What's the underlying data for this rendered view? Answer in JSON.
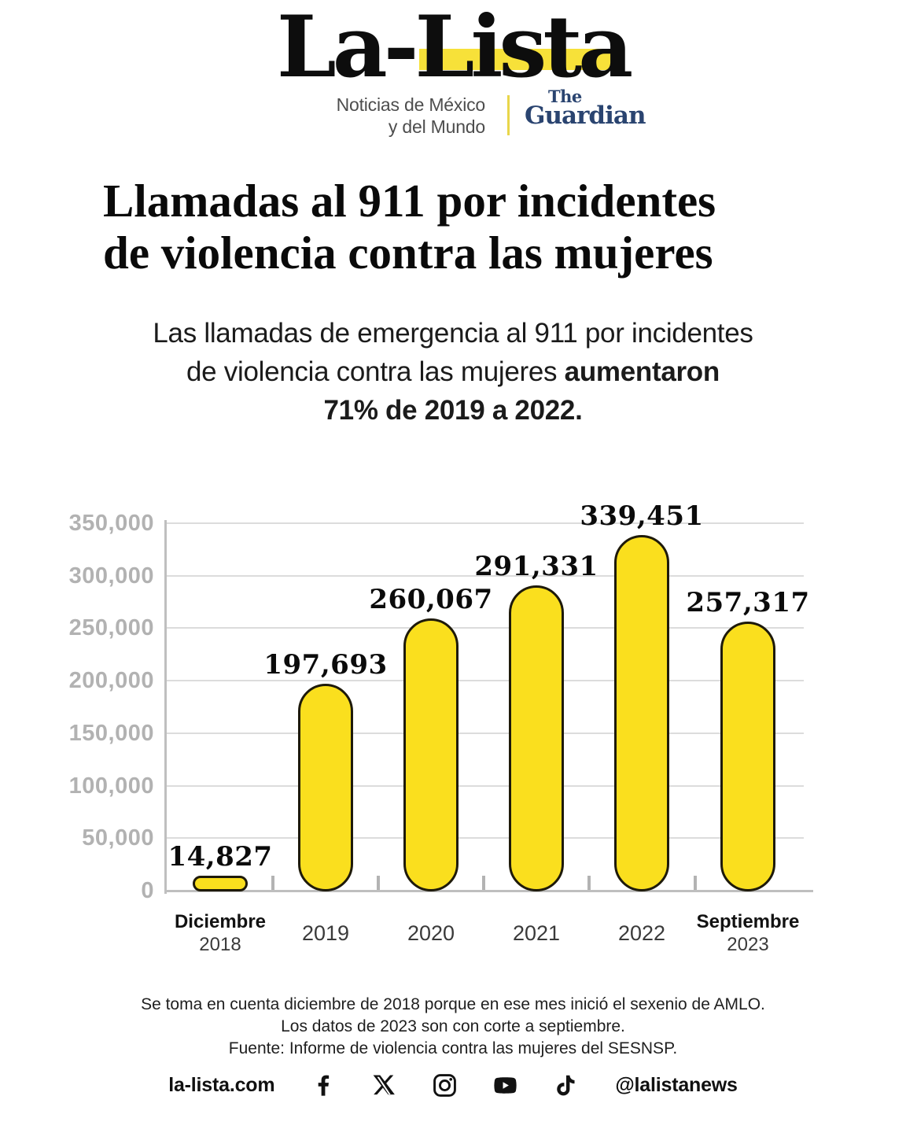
{
  "header": {
    "wordmark": "La-Lista",
    "tagline": {
      "line1": "Noticias de México",
      "line2": "y del Mundo"
    },
    "partner": {
      "line1": "The",
      "line2": "Guardian"
    }
  },
  "headline": {
    "line1": "Llamadas al 911 por incidentes",
    "line2": "de violencia contra las mujeres"
  },
  "subtitle": {
    "line1": "Las llamadas de emergencia al 911 por incidentes",
    "line2_regular": "de violencia contra las mujeres ",
    "line2_bold": "aumentaron",
    "line3_bold": "71% de 2019 a 2022."
  },
  "chart_data": {
    "type": "bar",
    "title": "Llamadas al 911 por incidentes de violencia contra las mujeres",
    "categories": [
      "Diciembre 2018",
      "2019",
      "2020",
      "2021",
      "2022",
      "Septiembre 2023"
    ],
    "values": [
      14827,
      197693,
      260067,
      291331,
      339451,
      257317
    ],
    "value_labels": [
      "14,827",
      "197,693",
      "260,067",
      "291,331",
      "339,451",
      "257,317"
    ],
    "ylim": [
      0,
      350000
    ],
    "ytick_interval": 50000,
    "ytick_labels_top_to_bottom": [
      "350,000",
      "300,000",
      "250,000",
      "200,000",
      "150,000",
      "100,000",
      "50,000",
      "0"
    ],
    "grid": true,
    "legend": false,
    "bar_color": "#fadf1e",
    "bar_outline": "#1e1a0a",
    "x_tick_labels": [
      {
        "line1": "Diciembre",
        "line2": "2018",
        "emphasis": true
      },
      {
        "line1": "2019"
      },
      {
        "line1": "2020"
      },
      {
        "line1": "2021"
      },
      {
        "line1": "2022"
      },
      {
        "line1": "Septiembre",
        "line2": "2023",
        "emphasis": true
      }
    ]
  },
  "footnote": {
    "line1": "Se toma en cuenta diciembre de 2018 porque en ese mes inició el sexenio de AMLO.",
    "line2": "Los datos de 2023 son con corte a septiembre.",
    "line3": "Fuente: Informe de violencia contra las mujeres del SESNSP."
  },
  "footer": {
    "website": "la-lista.com",
    "handle": "@lalistanews",
    "social_icons": [
      "facebook",
      "x",
      "instagram",
      "youtube",
      "tiktok"
    ]
  },
  "colors": {
    "accent_yellow": "#fadf1e",
    "logo_highlight": "#f7e139",
    "guardian_navy": "#2a4470",
    "grid_gray": "#dcdcdc",
    "axis_gray": "#bfbfbf",
    "ytick_gray": "#b2b2b2"
  }
}
